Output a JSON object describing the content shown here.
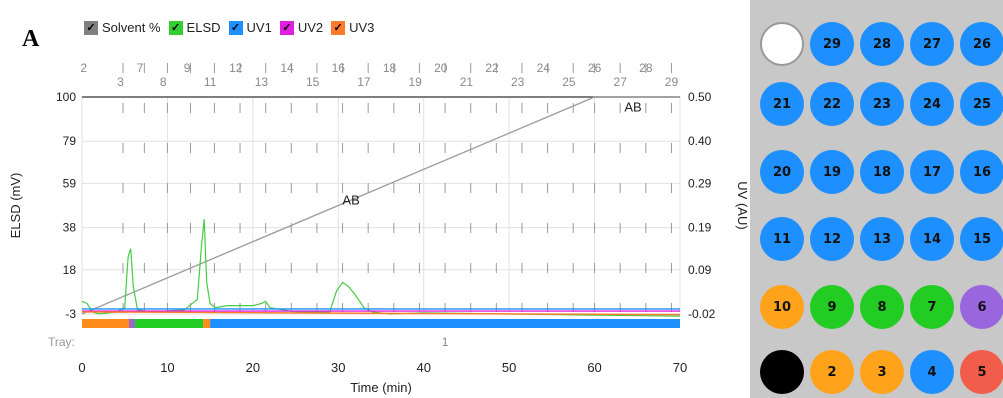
{
  "panel_label": "A",
  "legend": [
    {
      "label": "Solvent %",
      "color": "#808080",
      "check": "✓"
    },
    {
      "label": "ELSD",
      "color": "#33cc33",
      "check": "✓"
    },
    {
      "label": "UV1",
      "color": "#1e8fff",
      "check": "✓"
    },
    {
      "label": "UV2",
      "color": "#e020e0",
      "check": "✓"
    },
    {
      "label": "UV3",
      "color": "#ff7a2a",
      "check": "✓"
    }
  ],
  "chart_data": {
    "type": "line",
    "xlabel": "Time (min)",
    "ylabel_left": "ELSD (mV)",
    "ylabel_right": "UV (AU)",
    "xlim": [
      0,
      70
    ],
    "x_ticks": [
      "0",
      "10",
      "20",
      "30",
      "40",
      "50",
      "60",
      "70"
    ],
    "y_left_ticks": [
      "100",
      "79",
      "59",
      "38",
      "18",
      "-3"
    ],
    "y_left_values": [
      100,
      79,
      59,
      38,
      18,
      -3
    ],
    "y_right_ticks": [
      "0.50",
      "0.40",
      "0.29",
      "0.19",
      "0.09",
      "-0.02"
    ],
    "ylim_left": [
      -3,
      100
    ],
    "fraction_numbers": [
      "2",
      "3",
      "7",
      "8",
      "9",
      "11",
      "12",
      "13",
      "14",
      "15",
      "16",
      "17",
      "18",
      "19",
      "20",
      "21",
      "22",
      "23",
      "24",
      "25",
      "26",
      "27",
      "28",
      "29"
    ],
    "fraction_positions_min": [
      0.2,
      4.5,
      6.8,
      9.5,
      12.3,
      15,
      18,
      21,
      24,
      27,
      30,
      33,
      36,
      39,
      42,
      45,
      48,
      51,
      54,
      57,
      60,
      63,
      66,
      69
    ],
    "fraction_ticks_min": [
      4.8,
      7.3,
      10,
      12.7,
      15.5,
      18.5,
      21.5,
      24.5,
      27.5,
      30.5,
      33.5,
      36.5,
      39.5,
      42.5,
      45.5,
      48.5,
      51.5,
      54.5,
      57.5,
      60,
      63,
      66,
      69
    ],
    "tray_label": "Tray:",
    "tray_value": "1",
    "annotations": [
      {
        "text": "AB",
        "x": 31.5,
        "y": 49
      },
      {
        "text": "AB",
        "x": 64.5,
        "y": 93
      }
    ],
    "series": [
      {
        "name": "Solvent %",
        "color": "#a0a0a0",
        "x": [
          0,
          60,
          70
        ],
        "y": [
          -3,
          100,
          100
        ]
      },
      {
        "name": "ELSD",
        "color": "#44cc44",
        "x": [
          0,
          0.6,
          1.2,
          2,
          4,
          5,
          5.4,
          5.7,
          6,
          6.5,
          8,
          12,
          13.5,
          14,
          14.3,
          14.6,
          15,
          15.6,
          17,
          20,
          21,
          21.5,
          22,
          25,
          29,
          29.8,
          30.5,
          31.2,
          32,
          33,
          34,
          36,
          40,
          50,
          60,
          70
        ],
        "y": [
          3,
          2,
          -2,
          -3,
          -2,
          0,
          24,
          28,
          10,
          -1,
          -2,
          -1,
          4,
          30,
          42,
          12,
          2,
          0,
          1,
          1,
          2,
          3,
          0,
          -2,
          -2,
          8,
          12,
          10,
          6,
          0,
          -2,
          -3,
          -2.5,
          -3,
          -3.5,
          -4
        ]
      },
      {
        "name": "UV1",
        "color": "#1e8fff",
        "x": [
          0,
          70
        ],
        "y": [
          -0.6,
          -0.6
        ]
      },
      {
        "name": "UV2",
        "color": "#e020e0",
        "x": [
          0,
          70
        ],
        "y": [
          -1.6,
          -1.6
        ]
      },
      {
        "name": "UV3",
        "color": "#ff7a2a",
        "x": [
          0,
          20,
          40,
          60,
          70
        ],
        "y": [
          -2.0,
          -2.4,
          -2.8,
          -3.1,
          -3.3
        ]
      }
    ],
    "tray_bar": [
      {
        "from": 0,
        "to": 5.5,
        "color": "#ff8c1a"
      },
      {
        "from": 5.5,
        "to": 6.2,
        "color": "#9966cc"
      },
      {
        "from": 6.2,
        "to": 14.2,
        "color": "#22cc22"
      },
      {
        "from": 14.2,
        "to": 15.0,
        "color": "#ff8c1a"
      },
      {
        "from": 15.0,
        "to": 70,
        "color": "#1e8fff"
      }
    ]
  },
  "tray": [
    {
      "num": "",
      "color": "#ffffff"
    },
    {
      "num": "29",
      "color": "#1e8fff"
    },
    {
      "num": "28",
      "color": "#1e8fff"
    },
    {
      "num": "27",
      "color": "#1e8fff"
    },
    {
      "num": "26",
      "color": "#1e8fff"
    },
    {
      "num": "21",
      "color": "#1e8fff"
    },
    {
      "num": "22",
      "color": "#1e8fff"
    },
    {
      "num": "23",
      "color": "#1e8fff"
    },
    {
      "num": "24",
      "color": "#1e8fff"
    },
    {
      "num": "25",
      "color": "#1e8fff"
    },
    {
      "num": "20",
      "color": "#1e8fff"
    },
    {
      "num": "19",
      "color": "#1e8fff"
    },
    {
      "num": "18",
      "color": "#1e8fff"
    },
    {
      "num": "17",
      "color": "#1e8fff"
    },
    {
      "num": "16",
      "color": "#1e8fff"
    },
    {
      "num": "11",
      "color": "#1e8fff"
    },
    {
      "num": "12",
      "color": "#1e8fff"
    },
    {
      "num": "13",
      "color": "#1e8fff"
    },
    {
      "num": "14",
      "color": "#1e8fff"
    },
    {
      "num": "15",
      "color": "#1e8fff"
    },
    {
      "num": "10",
      "color": "#ffa31a"
    },
    {
      "num": "9",
      "color": "#22cc22"
    },
    {
      "num": "8",
      "color": "#22cc22"
    },
    {
      "num": "7",
      "color": "#22cc22"
    },
    {
      "num": "6",
      "color": "#9966dd"
    },
    {
      "num": "",
      "color": "#000000"
    },
    {
      "num": "2",
      "color": "#ffa31a"
    },
    {
      "num": "3",
      "color": "#ffa31a"
    },
    {
      "num": "4",
      "color": "#1e8fff"
    },
    {
      "num": "5",
      "color": "#f25c4a"
    }
  ]
}
